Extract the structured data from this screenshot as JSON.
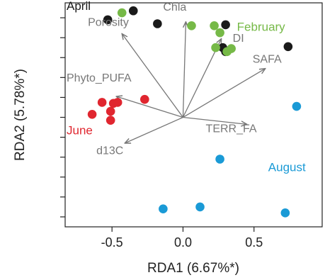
{
  "chart_data": {
    "type": "scatter",
    "xlabel": "RDA1 (6.67%*)",
    "ylabel": "RDA2 (5.78%*)",
    "xlim": [
      -0.83,
      0.98
    ],
    "ylim": [
      -1.1,
      1.15
    ],
    "x_ticks": [
      -0.5,
      0.0,
      0.5
    ],
    "x_tick_labels": [
      "-0.5",
      "0.0",
      "0.5"
    ],
    "y_ticks": [
      -1.0,
      -0.8,
      -0.6,
      -0.4,
      -0.2,
      0.0,
      0.2,
      0.4,
      0.6,
      0.8,
      1.0
    ],
    "grid": false,
    "series": [
      {
        "name": "April",
        "color": "#1a1a1a",
        "points": [
          {
            "x": -0.35,
            "y": 1.07
          },
          {
            "x": -0.53,
            "y": 0.98
          },
          {
            "x": -0.18,
            "y": 0.94
          },
          {
            "x": 0.3,
            "y": 0.93
          },
          {
            "x": 0.28,
            "y": 0.7
          },
          {
            "x": 0.3,
            "y": 0.66
          },
          {
            "x": 0.74,
            "y": 0.71
          }
        ]
      },
      {
        "name": "February",
        "color": "#76b947",
        "points": [
          {
            "x": -0.43,
            "y": 1.05
          },
          {
            "x": 0.06,
            "y": 0.92
          },
          {
            "x": 0.22,
            "y": 0.92
          },
          {
            "x": 0.26,
            "y": 0.85
          },
          {
            "x": 0.23,
            "y": 0.7
          },
          {
            "x": 0.34,
            "y": 0.69
          },
          {
            "x": 0.31,
            "y": 0.66
          }
        ]
      },
      {
        "name": "June",
        "color": "#e0262f",
        "points": [
          {
            "x": -0.27,
            "y": 0.18
          },
          {
            "x": -0.57,
            "y": 0.15
          },
          {
            "x": -0.49,
            "y": 0.14
          },
          {
            "x": -0.46,
            "y": 0.15
          },
          {
            "x": -0.51,
            "y": 0.06
          },
          {
            "x": -0.64,
            "y": 0.03
          },
          {
            "x": -0.51,
            "y": -0.03
          }
        ]
      },
      {
        "name": "August",
        "color": "#1a9ad6",
        "points": [
          {
            "x": 0.8,
            "y": 0.11
          },
          {
            "x": 0.26,
            "y": -0.42
          },
          {
            "x": -0.14,
            "y": -0.92
          },
          {
            "x": 0.12,
            "y": -0.9
          },
          {
            "x": 0.72,
            "y": -0.96
          }
        ]
      }
    ],
    "group_labels": [
      {
        "text": "April",
        "series": "April",
        "x": -0.82,
        "y": 1.08
      },
      {
        "text": "February",
        "series": "February",
        "x": 0.38,
        "y": 0.87
      },
      {
        "text": "June",
        "series": "June",
        "x": -0.82,
        "y": -0.17
      },
      {
        "text": "August",
        "series": "August",
        "x": 0.6,
        "y": -0.54
      }
    ],
    "vectors": [
      {
        "name": "Chla",
        "x": 0.02,
        "y": 0.96,
        "label_x": -0.14,
        "label_y": 1.07
      },
      {
        "name": "Porosity",
        "x": -0.43,
        "y": 0.84,
        "label_x": -0.67,
        "label_y": 0.92
      },
      {
        "name": "DI",
        "x": 0.27,
        "y": 0.79,
        "label_x": 0.35,
        "label_y": 0.76
      },
      {
        "name": "SAFA",
        "x": 0.58,
        "y": 0.49,
        "label_x": 0.49,
        "label_y": 0.55
      },
      {
        "name": "Phyto_PUFA",
        "x": -0.47,
        "y": 0.21,
        "label_x": -0.82,
        "label_y": 0.36
      },
      {
        "name": "TERR_FA",
        "x": 0.45,
        "y": -0.07,
        "label_x": 0.16,
        "label_y": -0.15
      },
      {
        "name": "d13C",
        "x": -0.41,
        "y": -0.26,
        "label_x": -0.61,
        "label_y": -0.37
      }
    ]
  }
}
